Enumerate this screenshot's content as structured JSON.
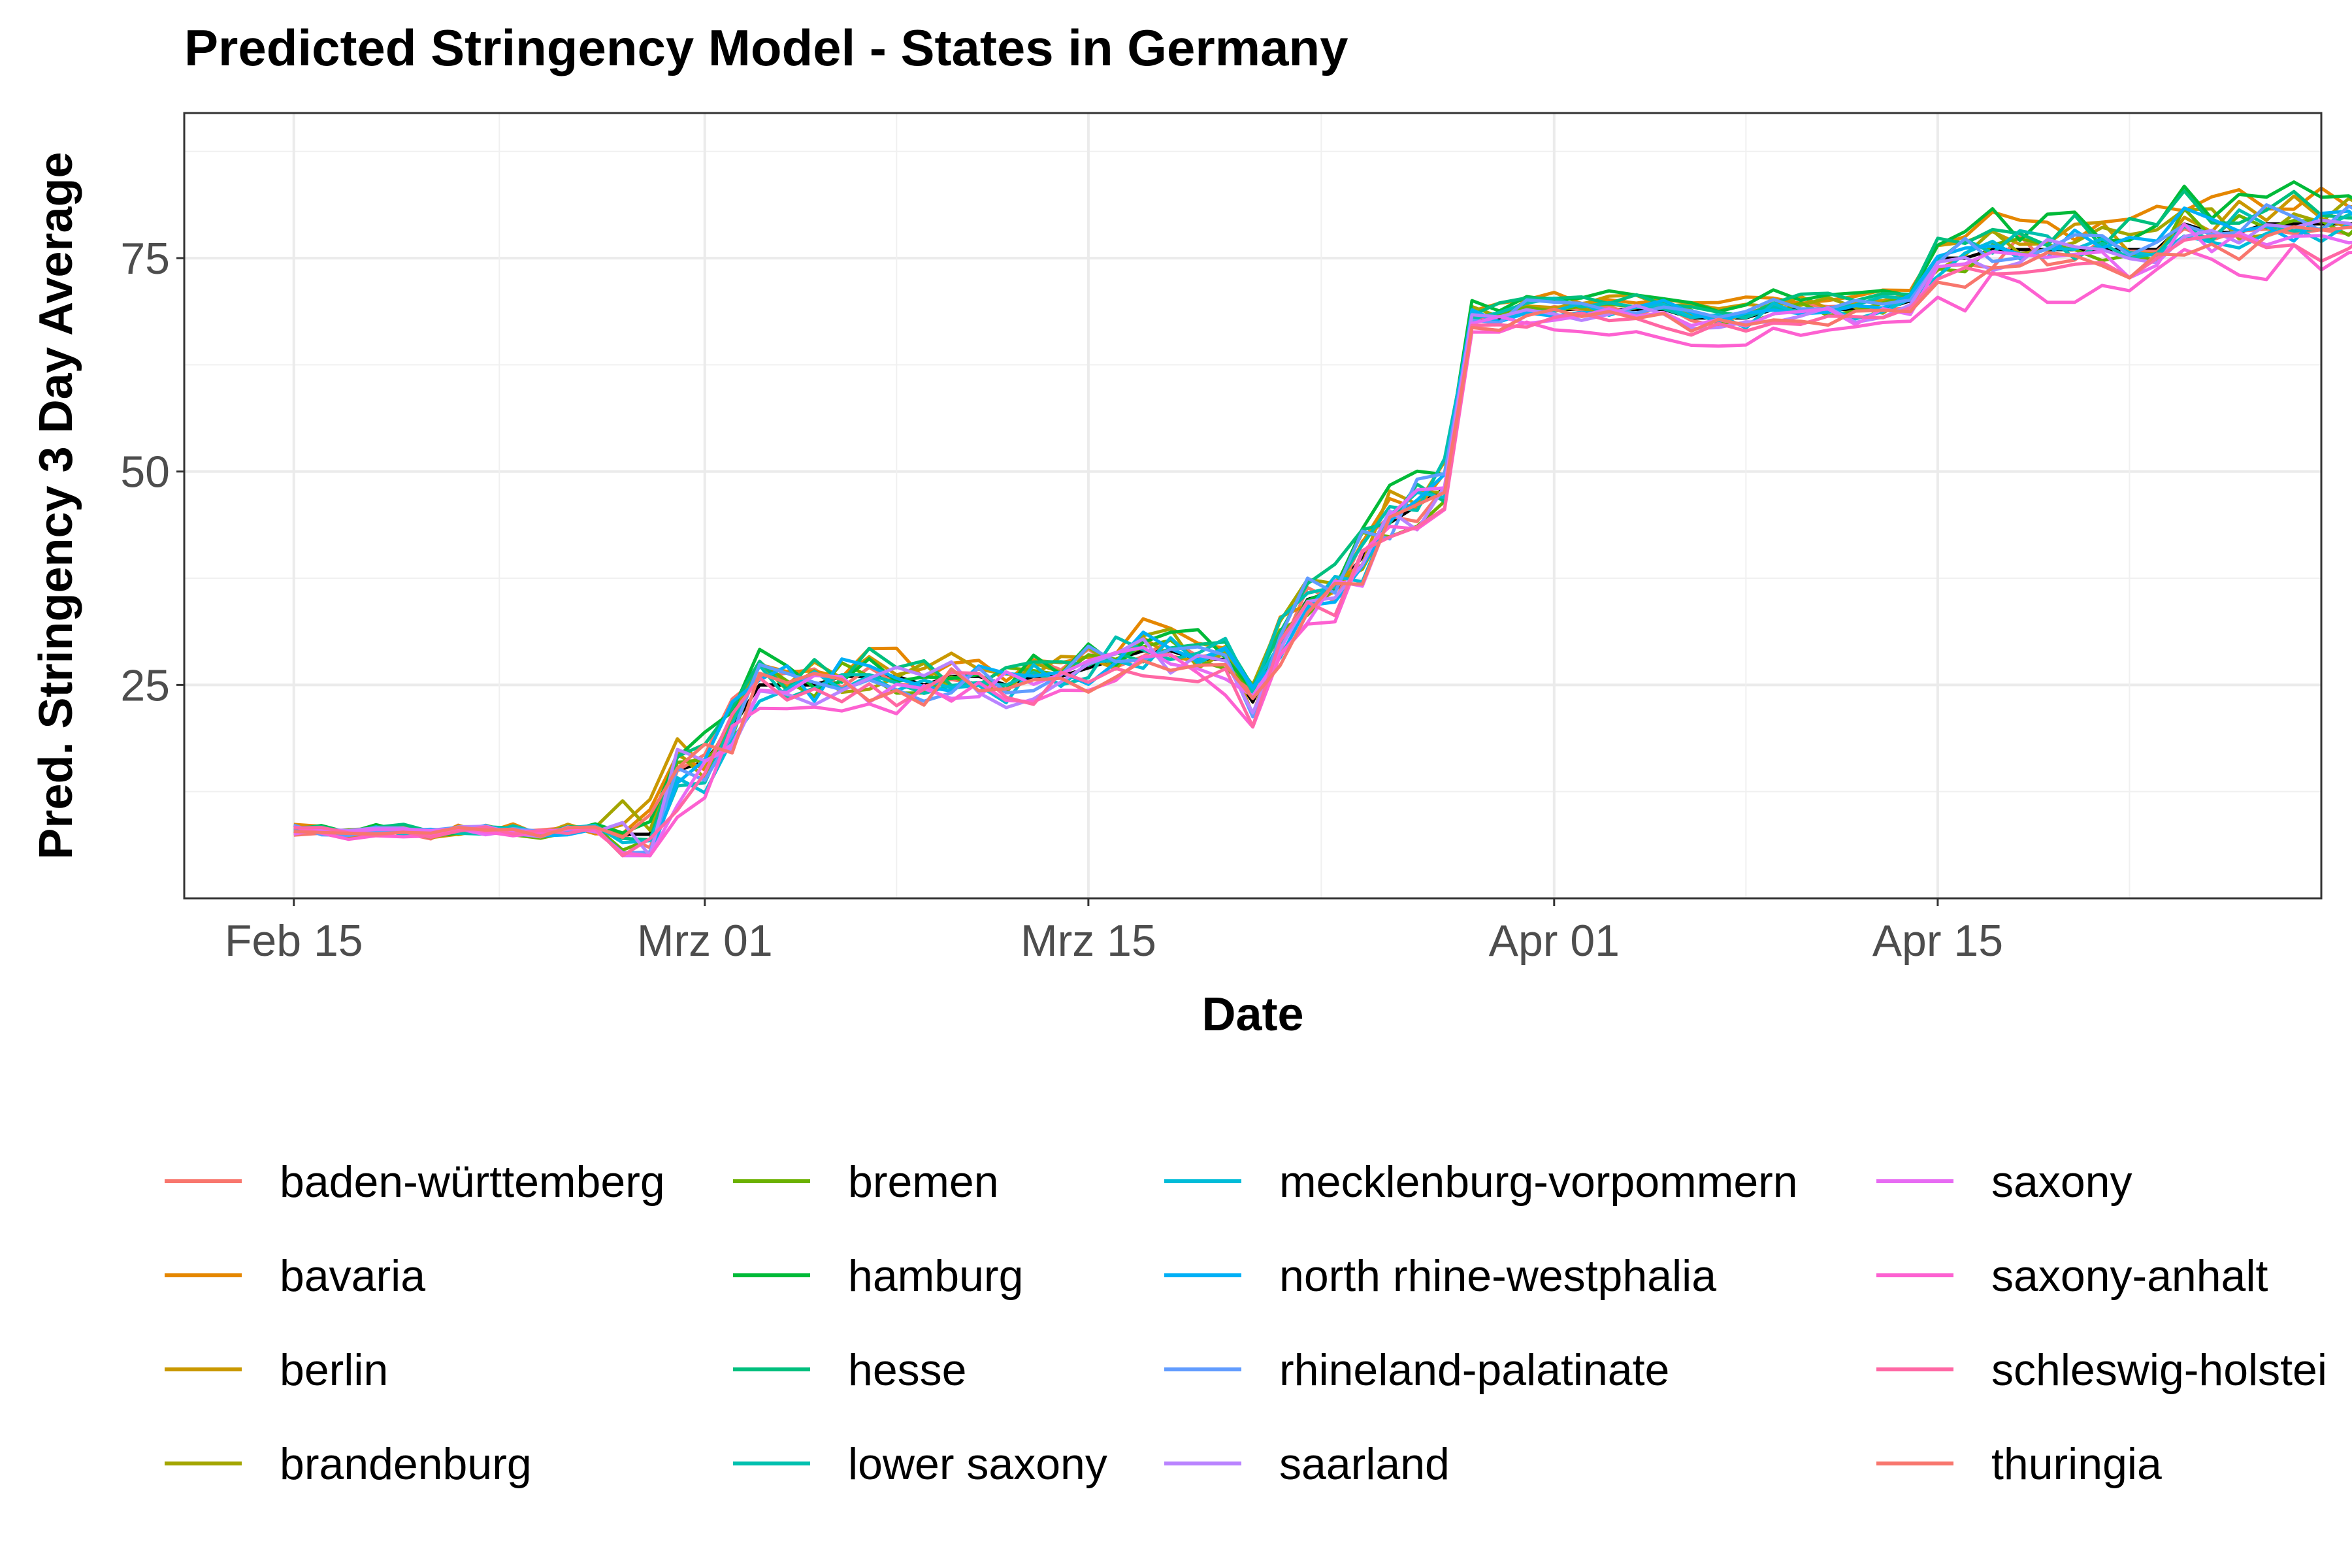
{
  "chart_data": {
    "type": "line",
    "title": "Predicted Stringency Model - States in Germany",
    "xlabel": "Date",
    "ylabel": "Pred. Stringency 3 Day Average",
    "x_start": "2020-02-15",
    "x_end": "2020-04-26",
    "xlim": [
      "2020-02-11",
      "2020-04-29"
    ],
    "ylim": [
      0,
      92
    ],
    "x_ticks": [
      {
        "date": "2020-02-15",
        "label": "Feb 15"
      },
      {
        "date": "2020-03-01",
        "label": "Mrz 01"
      },
      {
        "date": "2020-03-15",
        "label": "Mrz 15"
      },
      {
        "date": "2020-04-01",
        "label": "Apr 01"
      },
      {
        "date": "2020-04-15",
        "label": "Apr 15"
      }
    ],
    "y_ticks": [
      25,
      50,
      75
    ],
    "grid": true,
    "legend_position": "bottom",
    "baseline": {
      "color": "#000000"
    },
    "series": [
      {
        "name": "baden-württemberg",
        "color": "#F8766D",
        "offset": 0.0
      },
      {
        "name": "bavaria",
        "color": "#E58700",
        "offset": 3.0
      },
      {
        "name": "berlin",
        "color": "#C99800",
        "offset": 1.5
      },
      {
        "name": "brandenburg",
        "color": "#A3A500",
        "offset": 0.8
      },
      {
        "name": "bremen",
        "color": "#6BB100",
        "offset": 0.3
      },
      {
        "name": "hamburg",
        "color": "#00BA38",
        "offset": 2.8
      },
      {
        "name": "hesse",
        "color": "#00BF7D",
        "offset": 2.0
      },
      {
        "name": "lower saxony",
        "color": "#00C0AF",
        "offset": 1.0
      },
      {
        "name": "mecklenburg-vorpommern",
        "color": "#00BCD8",
        "offset": -0.5
      },
      {
        "name": "north rhine-westphalia",
        "color": "#00B0F6",
        "offset": 0.2
      },
      {
        "name": "rhineland-palatinate",
        "color": "#619CFF",
        "offset": 0.5
      },
      {
        "name": "saarland",
        "color": "#B983FF",
        "offset": -1.0
      },
      {
        "name": "saxony",
        "color": "#E76BF3",
        "offset": -1.5
      },
      {
        "name": "saxony-anhalt",
        "color": "#FD61D1",
        "offset": -4.5
      },
      {
        "name": "schleswig-holstein",
        "color": "#FF67A4",
        "offset": -2.5
      },
      {
        "name": "thuringia",
        "color": "#F8766D",
        "offset": -1.8
      }
    ],
    "legend_labels": [
      "baden-württemberg",
      "bavaria",
      "berlin",
      "brandenburg",
      "bremen",
      "hamburg",
      "hesse",
      "lower saxony",
      "mecklenburg-vorpommern",
      "north rhine-westphalia",
      "rhineland-palatinate",
      "saarland",
      "saxony",
      "saxony-anhalt",
      "schleswig-holstei",
      "thuringia"
    ],
    "baseline_values": [
      8,
      8,
      7.5,
      8,
      8,
      7.5,
      8,
      8,
      8,
      7.5,
      8,
      8,
      7.5,
      7.5,
      15,
      16,
      20,
      25,
      25,
      25,
      26,
      26,
      26,
      25,
      26,
      26,
      25,
      26,
      26,
      27,
      28,
      29,
      29,
      28,
      28,
      23,
      30,
      35,
      36,
      40,
      44,
      46,
      48,
      68,
      68,
      69,
      69,
      69,
      69,
      69,
      69,
      68,
      68,
      68,
      69,
      69,
      69,
      69,
      69,
      70,
      75,
      75,
      76,
      76,
      76,
      76,
      76,
      76,
      76,
      79,
      78,
      78,
      79,
      79,
      79,
      79,
      79,
      79,
      79,
      79,
      78,
      78,
      78
    ]
  }
}
